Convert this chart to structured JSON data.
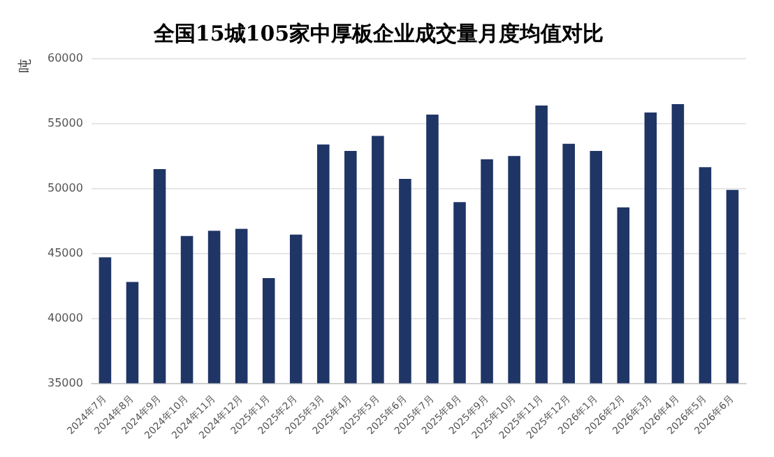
{
  "chart_data": {
    "type": "bar",
    "title": "全国15城105家中厚板企业成交量月度均值对比",
    "ylabel": "吨",
    "categories": [
      "2024年7月",
      "2024年8月",
      "2024年9月",
      "2024年10月",
      "2024年11月",
      "2024年12月",
      "2025年1月",
      "2025年2月",
      "2025年3月",
      "2025年4月",
      "2025年5月",
      "2025年6月",
      "2025年7月",
      "2025年8月",
      "2025年9月",
      "2025年10月",
      "2025年11月",
      "2025年12月",
      "2026年1月",
      "2026年2月",
      "2026年3月",
      "2026年4月",
      "2026年5月",
      "2026年6月"
    ],
    "values": [
      44700,
      42800,
      51500,
      46350,
      46750,
      46900,
      43100,
      46450,
      53400,
      52900,
      54050,
      50750,
      55700,
      48950,
      52250,
      52500,
      56400,
      53450,
      52900,
      48550,
      55850,
      56500,
      51650,
      49900
    ],
    "color": "#1f3566",
    "ylim": [
      35000,
      60000
    ],
    "yticks": [
      35000,
      40000,
      45000,
      50000,
      55000,
      60000
    ],
    "grid": "y"
  }
}
